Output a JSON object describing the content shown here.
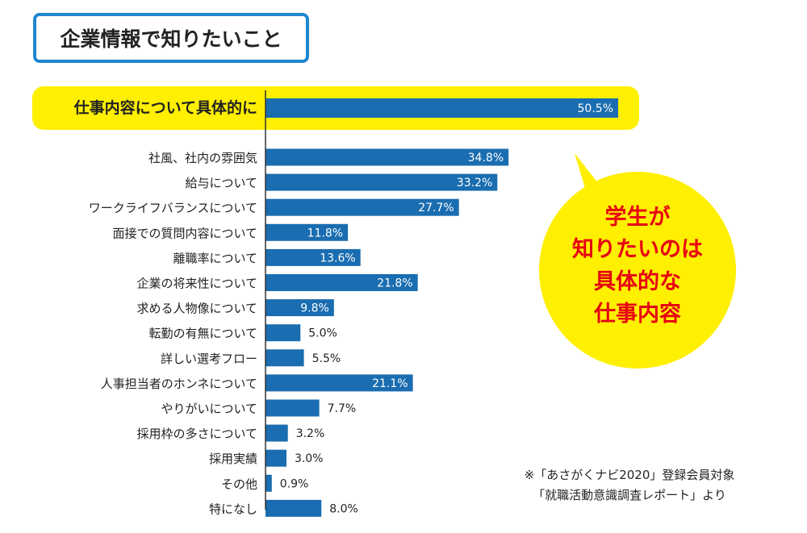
{
  "title": "企業情報で知りたいこと",
  "callout": [
    "学生が",
    "知りたいのは",
    "具体的な",
    "仕事内容"
  ],
  "note": [
    "※「あさがくナビ2020」登録会員対象",
    "「就職活動意識調査レポート」より"
  ],
  "colors": {
    "bar": "#1a6db0",
    "highlight": "#ffef00",
    "callout_text": "#e60012",
    "title_border": "#1e87d0"
  },
  "chart_data": {
    "type": "bar",
    "orientation": "horizontal",
    "title": "企業情報で知りたいこと",
    "categories": [
      "仕事内容について具体的に",
      "社風、社内の雰囲気",
      "給与について",
      "ワークライフバランスについて",
      "面接での質問内容について",
      "離職率について",
      "企業の将来性について",
      "求める人物像について",
      "転勤の有無について",
      "詳しい選考フロー",
      "人事担当者のホンネについて",
      "やりがいについて",
      "採用枠の多さについて",
      "採用実績",
      "その他",
      "特になし"
    ],
    "values": [
      50.5,
      34.8,
      33.2,
      27.7,
      11.8,
      13.6,
      21.8,
      9.8,
      5.0,
      5.5,
      21.1,
      7.7,
      3.2,
      3.0,
      0.9,
      8.0
    ],
    "labels": [
      "50.5%",
      "34.8%",
      "33.2%",
      "27.7%",
      "11.8%",
      "13.6%",
      "21.8%",
      "9.8%",
      "5.0%",
      "5.5%",
      "21.1%",
      "7.7%",
      "3.2%",
      "3.0%",
      "0.9%",
      "8.0%"
    ],
    "unit": "%",
    "xlim": [
      0,
      50.5
    ],
    "highlighted": 0
  }
}
